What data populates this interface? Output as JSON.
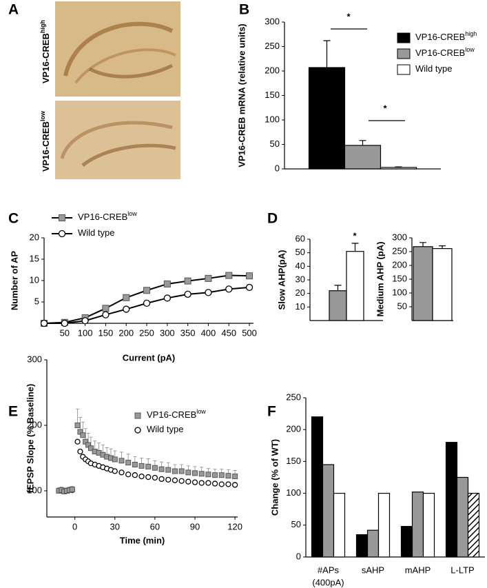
{
  "panel_labels": [
    "A",
    "B",
    "C",
    "D",
    "E",
    "F"
  ],
  "panel_a": {
    "images": [
      {
        "label": "VP16-CREB",
        "label_sup": "high"
      },
      {
        "label": "VP16-CREB",
        "label_sup": "low"
      }
    ]
  },
  "chart_data": [
    {
      "type": "bar",
      "y_label": "VP16-CREB mRNA (relative units)",
      "ylim": [
        0,
        300
      ],
      "yticks": [
        0,
        50,
        100,
        150,
        200,
        250,
        300
      ],
      "series": [
        {
          "name": "VP16-CREB",
          "name_sup": "high",
          "color": "#000000",
          "values": [
            207
          ],
          "errors": [
            55
          ]
        },
        {
          "name": "VP16-CREB",
          "name_sup": "low",
          "color": "#999999",
          "values": [
            48
          ],
          "errors": [
            10
          ]
        },
        {
          "name": "Wild type",
          "color": "#ffffff",
          "values": [
            3
          ],
          "errors": [
            1
          ]
        }
      ],
      "annotations": [
        "*",
        "*"
      ],
      "legend": "right"
    },
    {
      "type": "line",
      "x_label": "Current (pA)",
      "y_label": "Number of AP",
      "x": [
        0,
        50,
        100,
        150,
        200,
        250,
        300,
        350,
        400,
        450,
        500
      ],
      "xlim": [
        0,
        510
      ],
      "xticks": [
        50,
        100,
        150,
        200,
        250,
        300,
        350,
        400,
        450,
        500
      ],
      "ylim": [
        0,
        20
      ],
      "yticks": [
        5,
        10,
        15,
        20
      ],
      "series": [
        {
          "name": "VP16-CREB",
          "name_sup": "low",
          "color": "#999999",
          "marker": "square",
          "values": [
            0,
            0.2,
            1.3,
            3.5,
            6,
            7.7,
            9.2,
            9.9,
            10.5,
            11.2,
            11.1
          ]
        },
        {
          "name": "Wild type",
          "color": "#ffffff",
          "marker": "circle",
          "values": [
            0,
            0,
            0.6,
            2,
            3.3,
            4.7,
            5.9,
            6.8,
            7.2,
            8,
            8.4
          ]
        }
      ],
      "legend": "upper left"
    },
    {
      "type": "bar",
      "y_label": "Slow AHP(pA)",
      "ylim": [
        0,
        60
      ],
      "yticks": [
        10,
        20,
        30,
        40,
        50,
        60
      ],
      "series": [
        {
          "color": "#999999",
          "values": [
            22
          ],
          "errors": [
            4
          ]
        },
        {
          "color": "#ffffff",
          "values": [
            51
          ],
          "errors": [
            6
          ]
        }
      ],
      "annotations": [
        "*"
      ]
    },
    {
      "type": "bar",
      "y_label": "Medium AHP (pA)",
      "ylim": [
        0,
        300
      ],
      "yticks": [
        50,
        100,
        150,
        200,
        250,
        300
      ],
      "series": [
        {
          "color": "#999999",
          "values": [
            268
          ],
          "errors": [
            15
          ]
        },
        {
          "color": "#ffffff",
          "values": [
            261
          ],
          "errors": [
            10
          ]
        }
      ]
    },
    {
      "type": "scatter",
      "x_label": "Time (min)",
      "y_label": "fEPSP Slope (% Baseline)",
      "x": [
        -12,
        -10,
        -8,
        -6,
        -4,
        -2,
        2,
        4,
        6,
        8,
        10,
        12,
        15,
        18,
        21,
        24,
        27,
        30,
        35,
        40,
        45,
        50,
        55,
        60,
        65,
        70,
        75,
        80,
        85,
        90,
        95,
        100,
        105,
        110,
        115,
        120
      ],
      "xlim": [
        -21,
        122
      ],
      "xticks": [
        0,
        30,
        60,
        90,
        120
      ],
      "ylim": [
        60,
        300
      ],
      "yticks": [
        100,
        200,
        300
      ],
      "series": [
        {
          "name": "VP16-CREB",
          "name_sup": "low",
          "color": "#999999",
          "marker": "square",
          "values": [
            100,
            101,
            99,
            100,
            101,
            102,
            200,
            190,
            185,
            175,
            170,
            165,
            160,
            158,
            155,
            152,
            150,
            148,
            146,
            143,
            140,
            138,
            137,
            135,
            133,
            132,
            130,
            130,
            128,
            127,
            126,
            125,
            124,
            124,
            123,
            122
          ],
          "errors": [
            5,
            5,
            5,
            5,
            5,
            5,
            25,
            22,
            20,
            20,
            18,
            17,
            16,
            15,
            15,
            14,
            14,
            13,
            13,
            13,
            12,
            12,
            12,
            11,
            11,
            11,
            10,
            10,
            10,
            10,
            10,
            9,
            9,
            9,
            9,
            9
          ]
        },
        {
          "name": "Wild type",
          "color": "#ffffff",
          "marker": "circle",
          "values": [
            100,
            100,
            99,
            100,
            101,
            101,
            175,
            160,
            152,
            148,
            145,
            142,
            140,
            138,
            136,
            134,
            132,
            130,
            128,
            125,
            124,
            122,
            121,
            120,
            118,
            117,
            116,
            115,
            114,
            113,
            112,
            112,
            111,
            110,
            110,
            109
          ]
        }
      ],
      "legend": "upper right"
    },
    {
      "type": "bar",
      "y_label": "Change (% of WT)",
      "categories": [
        "#APs",
        "sAHP",
        "mAHP",
        "L-LTP"
      ],
      "category_sublabels": [
        "(400pA)",
        null,
        null,
        null
      ],
      "ylim": [
        0,
        250
      ],
      "yticks": [
        0,
        50,
        100,
        150,
        200,
        250
      ],
      "series": [
        {
          "color": "#000000",
          "values": [
            220,
            35,
            48,
            180
          ]
        },
        {
          "color": "#999999",
          "values": [
            145,
            42,
            102,
            125
          ]
        },
        {
          "color": "#ffffff",
          "values": [
            100,
            100,
            100,
            100
          ],
          "hatched": [
            false,
            false,
            false,
            true
          ]
        }
      ]
    }
  ]
}
